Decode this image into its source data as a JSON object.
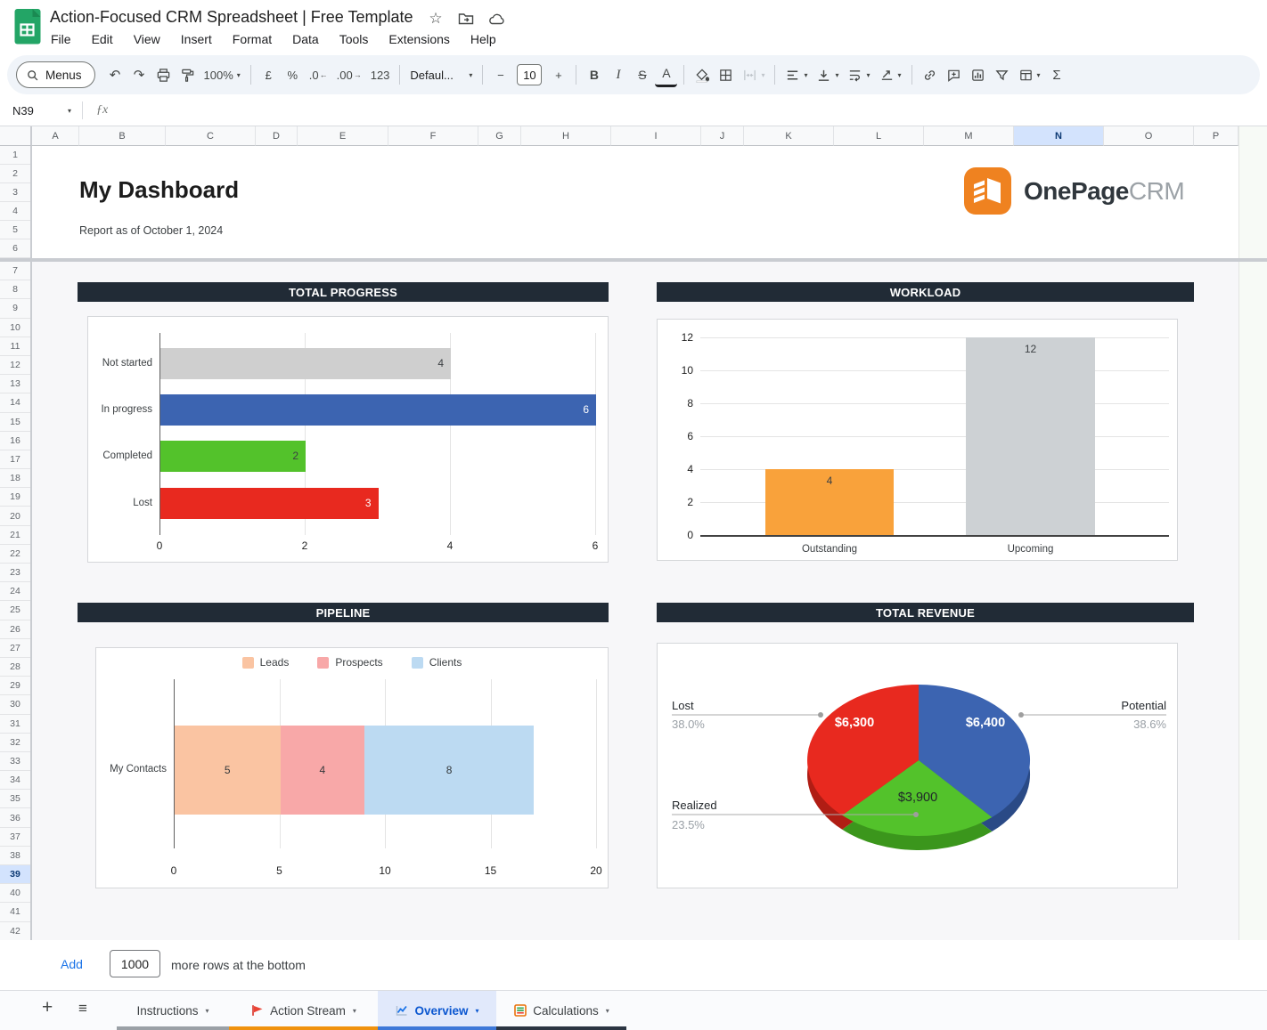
{
  "titlebar": {
    "document_title": "Action-Focused CRM Spreadsheet | Free Template",
    "menus": [
      "File",
      "Edit",
      "View",
      "Insert",
      "Format",
      "Data",
      "Tools",
      "Extensions",
      "Help"
    ]
  },
  "toolbar": {
    "menus_label": "Menus",
    "zoom": "100%",
    "currency": "£",
    "percent": "%",
    "decrease_decimal": ".0",
    "increase_decimal": ".00",
    "number_format": "123",
    "font_name": "Defaul...",
    "font_size": "10",
    "minus": "−",
    "plus": "+",
    "bold": "B",
    "italic": "I",
    "strikethrough": "S",
    "text_color": "A",
    "sum": "Σ"
  },
  "formula_bar": {
    "cell_reference": "N39",
    "function_label": "ƒx"
  },
  "grid": {
    "columns": [
      "A",
      "B",
      "C",
      "D",
      "E",
      "F",
      "G",
      "H",
      "I",
      "J",
      "K",
      "L",
      "M",
      "N",
      "O",
      "P"
    ],
    "selected_column": "N",
    "row_count": 42,
    "selected_row": 39
  },
  "dashboard": {
    "title": "My Dashboard",
    "subtitle": "Report as of October 1, 2024",
    "brand_bold": "OnePage",
    "brand_light": "CRM"
  },
  "chart_data": [
    {
      "type": "bar",
      "orientation": "horizontal",
      "title": "TOTAL PROGRESS",
      "categories": [
        "Not started",
        "In progress",
        "Completed",
        "Lost"
      ],
      "values": [
        4,
        6,
        2,
        3
      ],
      "colors": [
        "#CFCFCF",
        "#3C64B1",
        "#53C22B",
        "#E8291F"
      ],
      "value_label_styles": [
        "dark",
        "white",
        "dark",
        "white"
      ],
      "xticks": [
        0,
        2,
        4,
        6
      ],
      "xlim": [
        0,
        6
      ],
      "grid": true,
      "legend_position": "none"
    },
    {
      "type": "bar",
      "orientation": "vertical",
      "title": "WORKLOAD",
      "categories": [
        "Outstanding",
        "Upcoming"
      ],
      "values": [
        4,
        12
      ],
      "colors": [
        "#F9A23B",
        "#CDD1D4"
      ],
      "yticks": [
        0,
        2,
        4,
        6,
        8,
        10,
        12
      ],
      "ylim": [
        0,
        12
      ],
      "grid": true,
      "legend_position": "none"
    },
    {
      "type": "stacked-bar",
      "orientation": "horizontal",
      "title": "PIPELINE",
      "categories": [
        "My Contacts"
      ],
      "series": [
        {
          "name": "Leads",
          "values": [
            5
          ],
          "color": "#FAC4A2"
        },
        {
          "name": "Prospects",
          "values": [
            4
          ],
          "color": "#F8A8A8"
        },
        {
          "name": "Clients",
          "values": [
            8
          ],
          "color": "#BCDAF2"
        }
      ],
      "xticks": [
        0,
        5,
        10,
        15,
        20
      ],
      "xlim": [
        0,
        20
      ],
      "grid": true,
      "legend_position": "top"
    },
    {
      "type": "pie",
      "style": "3d",
      "title": "TOTAL REVENUE",
      "slices": [
        {
          "label": "Potential",
          "value_label": "$6,400",
          "pct_label": "38.6%",
          "pct": 38.6,
          "color": "#3C64B1",
          "dark_color": "#2A4A86",
          "value_text": "white"
        },
        {
          "label": "Realized",
          "value_label": "$3,900",
          "pct_label": "23.5%",
          "pct": 23.5,
          "color": "#53C22B",
          "dark_color": "#3B961C",
          "value_text": "dark"
        },
        {
          "label": "Lost",
          "value_label": "$6,300",
          "pct_label": "38.0%",
          "pct": 38.0,
          "color": "#E8291F",
          "dark_color": "#B01D14",
          "value_text": "white"
        }
      ]
    }
  ],
  "footer": {
    "add_button": "Add",
    "rows_input_value": "1000",
    "rows_suffix": "more rows at the bottom"
  },
  "sheet_tabs": {
    "tabs": [
      {
        "label": "Instructions",
        "icon": null,
        "color": "#9AA0A6",
        "active": false
      },
      {
        "label": "Action Stream",
        "icon": "flag-icon",
        "color": "#F0920E",
        "active": false
      },
      {
        "label": "Overview",
        "icon": "line-chart-icon",
        "color": "#3D78D8",
        "active": true
      },
      {
        "label": "Calculations",
        "icon": "table-icon",
        "color": "#2B3542",
        "active": false
      }
    ]
  },
  "icons": {
    "undo": "↶",
    "redo": "↷",
    "caret": "▾",
    "star": "☆",
    "plus": "+",
    "all_sheets": "≡",
    "arrow_left": "←",
    "arrow_right": "→"
  },
  "colors": {
    "toolbar_bg": "#F0F4F9",
    "section_header_bg": "#212B36",
    "selected_header_bg": "#D3E3FD",
    "dashboard_bg": "#F7F7F9",
    "accent_blue": "#1A73E8",
    "logo_orange": "#EF8220",
    "sheets_green": "#23A566",
    "active_tab_bg": "#E1E9FB",
    "frozen_divider": "#C9CCD1"
  }
}
